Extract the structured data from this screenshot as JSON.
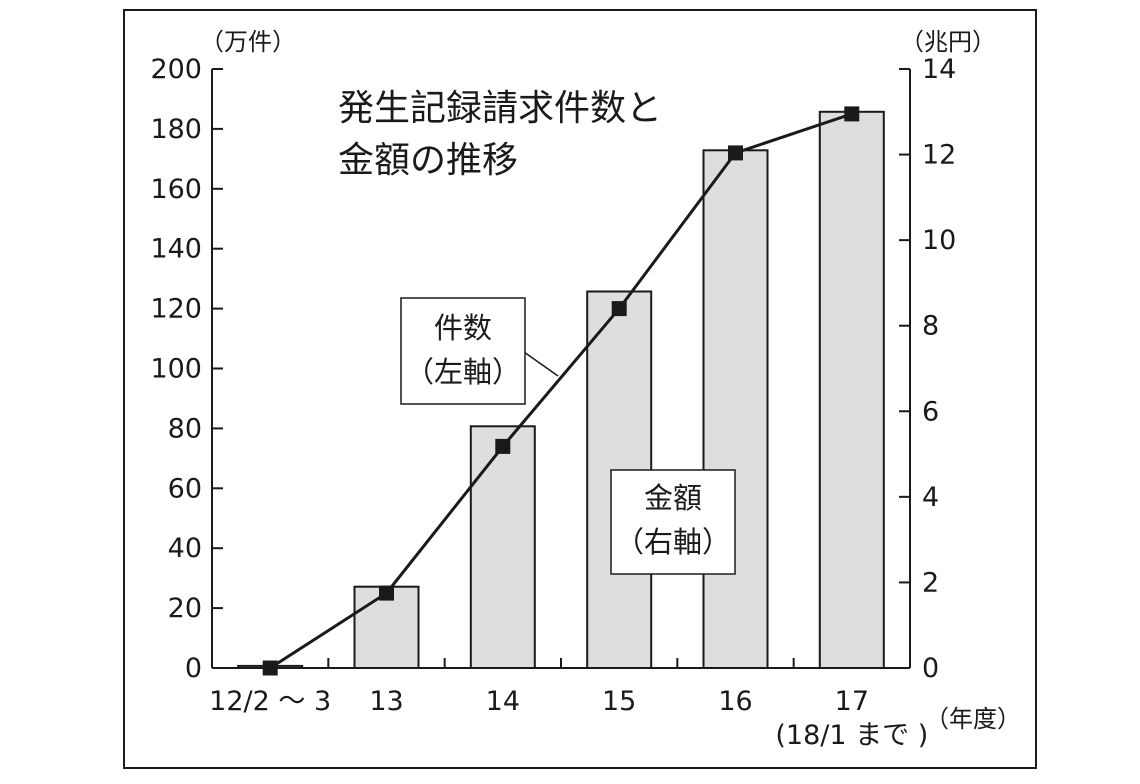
{
  "chart_data": {
    "type": "bar+line",
    "title_lines": [
      "発生記録請求件数と",
      "金額の推移"
    ],
    "left_axis": {
      "unit": "（万件）",
      "ylim": [
        0,
        200
      ],
      "ticks": [
        "0",
        "20",
        "40",
        "60",
        "80",
        "100",
        "120",
        "140",
        "160",
        "180",
        "200"
      ]
    },
    "right_axis": {
      "unit": "（兆円）",
      "ylim": [
        0,
        14
      ],
      "ticks": [
        "0",
        "2",
        "4",
        "6",
        "8",
        "10",
        "12",
        "14"
      ]
    },
    "x_axis": {
      "unit": "（年度）",
      "categories": [
        "12/2 ～ 3",
        "13",
        "14",
        "15",
        "16",
        "17"
      ],
      "sub_labels": [
        "",
        "",
        "",
        "",
        "",
        "(18/1 まで )"
      ]
    },
    "series": [
      {
        "name_lines": [
          "金額",
          "（右軸）"
        ],
        "kind": "bar",
        "axis": "right",
        "values": [
          0.05,
          1.9,
          5.65,
          8.8,
          12.1,
          13.0
        ]
      },
      {
        "name_lines": [
          "件数",
          "（左軸）"
        ],
        "kind": "line",
        "axis": "left",
        "values": [
          0,
          25,
          74,
          120,
          172,
          185
        ]
      }
    ],
    "colors": {
      "bar_fill": "#dcdee0",
      "stroke": "#1a1a1a",
      "background": "#ffffff"
    },
    "grid": false,
    "legend": "callout boxes inside plot"
  }
}
